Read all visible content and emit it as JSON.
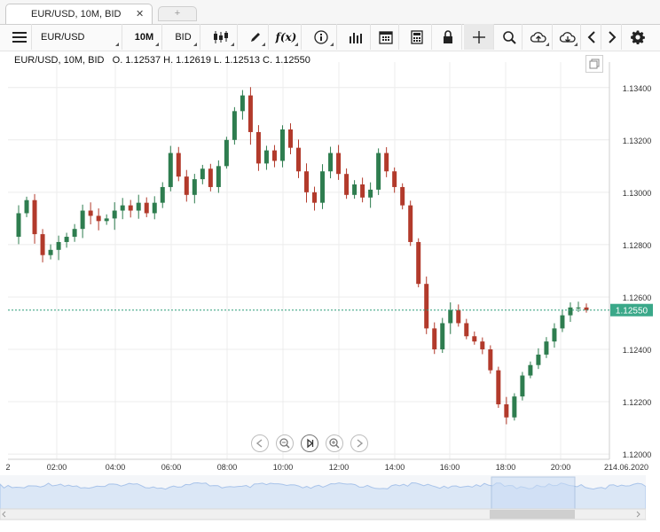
{
  "tabs": [
    {
      "label": "EUR/USD, 10M, BID",
      "close": "✕"
    }
  ],
  "tab_add": "+",
  "toolbar": {
    "symbol": "EUR/USD",
    "timeframe": "10M",
    "price_side": "BID",
    "icons": [
      "menu-icon",
      "candles-icon",
      "pencil-icon",
      "function-icon",
      "info-icon",
      "volume-bars-icon",
      "calendar-icon",
      "calculator-icon",
      "lock-icon",
      "crosshair-icon",
      "zoom-icon",
      "cloud-upload-icon",
      "cloud-download-icon",
      "chevron-left-icon",
      "chevron-right-icon",
      "gear-icon"
    ],
    "function_label": "f(x)"
  },
  "legend": "EUR/USD, 10M, BID   O. 1.12537 H. 1.12619 L. 1.12513 C. 1.12550",
  "colors": {
    "up": "#2e7d4f",
    "down": "#b23a2b",
    "last_line": "#2e9d7a",
    "price_tag": "#3aa889",
    "overview_fill": "#dbe7f6",
    "overview_line": "#a9c4ea"
  },
  "chart_data": {
    "type": "candlestick",
    "symbol": "EUR/USD",
    "timeframe": "10M",
    "price_side": "BID",
    "ohlc_last": {
      "open": 1.12537,
      "high": 1.12619,
      "low": 1.12513,
      "close": 1.1255
    },
    "last_price_label": "1.12550",
    "y_ticks": [
      "1.13400",
      "1.13200",
      "1.13000",
      "1.12800",
      "1.12600",
      "1.12400",
      "1.12200",
      "1.12000"
    ],
    "ylim": [
      1.1198,
      1.1345
    ],
    "x_ticks": [
      "2",
      "02:00",
      "04:00",
      "06:00",
      "08:00",
      "10:00",
      "12:00",
      "14:00",
      "16:00",
      "18:00",
      "20:00",
      "214.06.2020"
    ],
    "grid": true,
    "close_path": [
      1.1283,
      1.1292,
      1.1297,
      1.1284,
      1.1276,
      1.1278,
      1.1281,
      1.1283,
      1.1286,
      1.1293,
      1.1291,
      1.1289,
      1.129,
      1.1293,
      1.1295,
      1.1293,
      1.1296,
      1.1292,
      1.1296,
      1.1302,
      1.1315,
      1.1306,
      1.1299,
      1.1305,
      1.1309,
      1.1302,
      1.131,
      1.132,
      1.1331,
      1.1337,
      1.1323,
      1.1311,
      1.1316,
      1.1312,
      1.1324,
      1.1317,
      1.1308,
      1.13,
      1.1296,
      1.1308,
      1.1315,
      1.1307,
      1.1299,
      1.1303,
      1.1298,
      1.1301,
      1.1315,
      1.1308,
      1.1302,
      1.1295,
      1.1281,
      1.1265,
      1.1248,
      1.124,
      1.125,
      1.1255,
      1.125,
      1.1245,
      1.1243,
      1.124,
      1.1232,
      1.1219,
      1.1214,
      1.1222,
      1.123,
      1.1234,
      1.1238,
      1.1243,
      1.1248,
      1.1253,
      1.1256,
      1.1256,
      1.1255
    ]
  },
  "nav_buttons": [
    "scroll-left-icon",
    "zoom-out-icon",
    "reset-zoom-icon",
    "zoom-in-icon",
    "scroll-right-icon"
  ]
}
